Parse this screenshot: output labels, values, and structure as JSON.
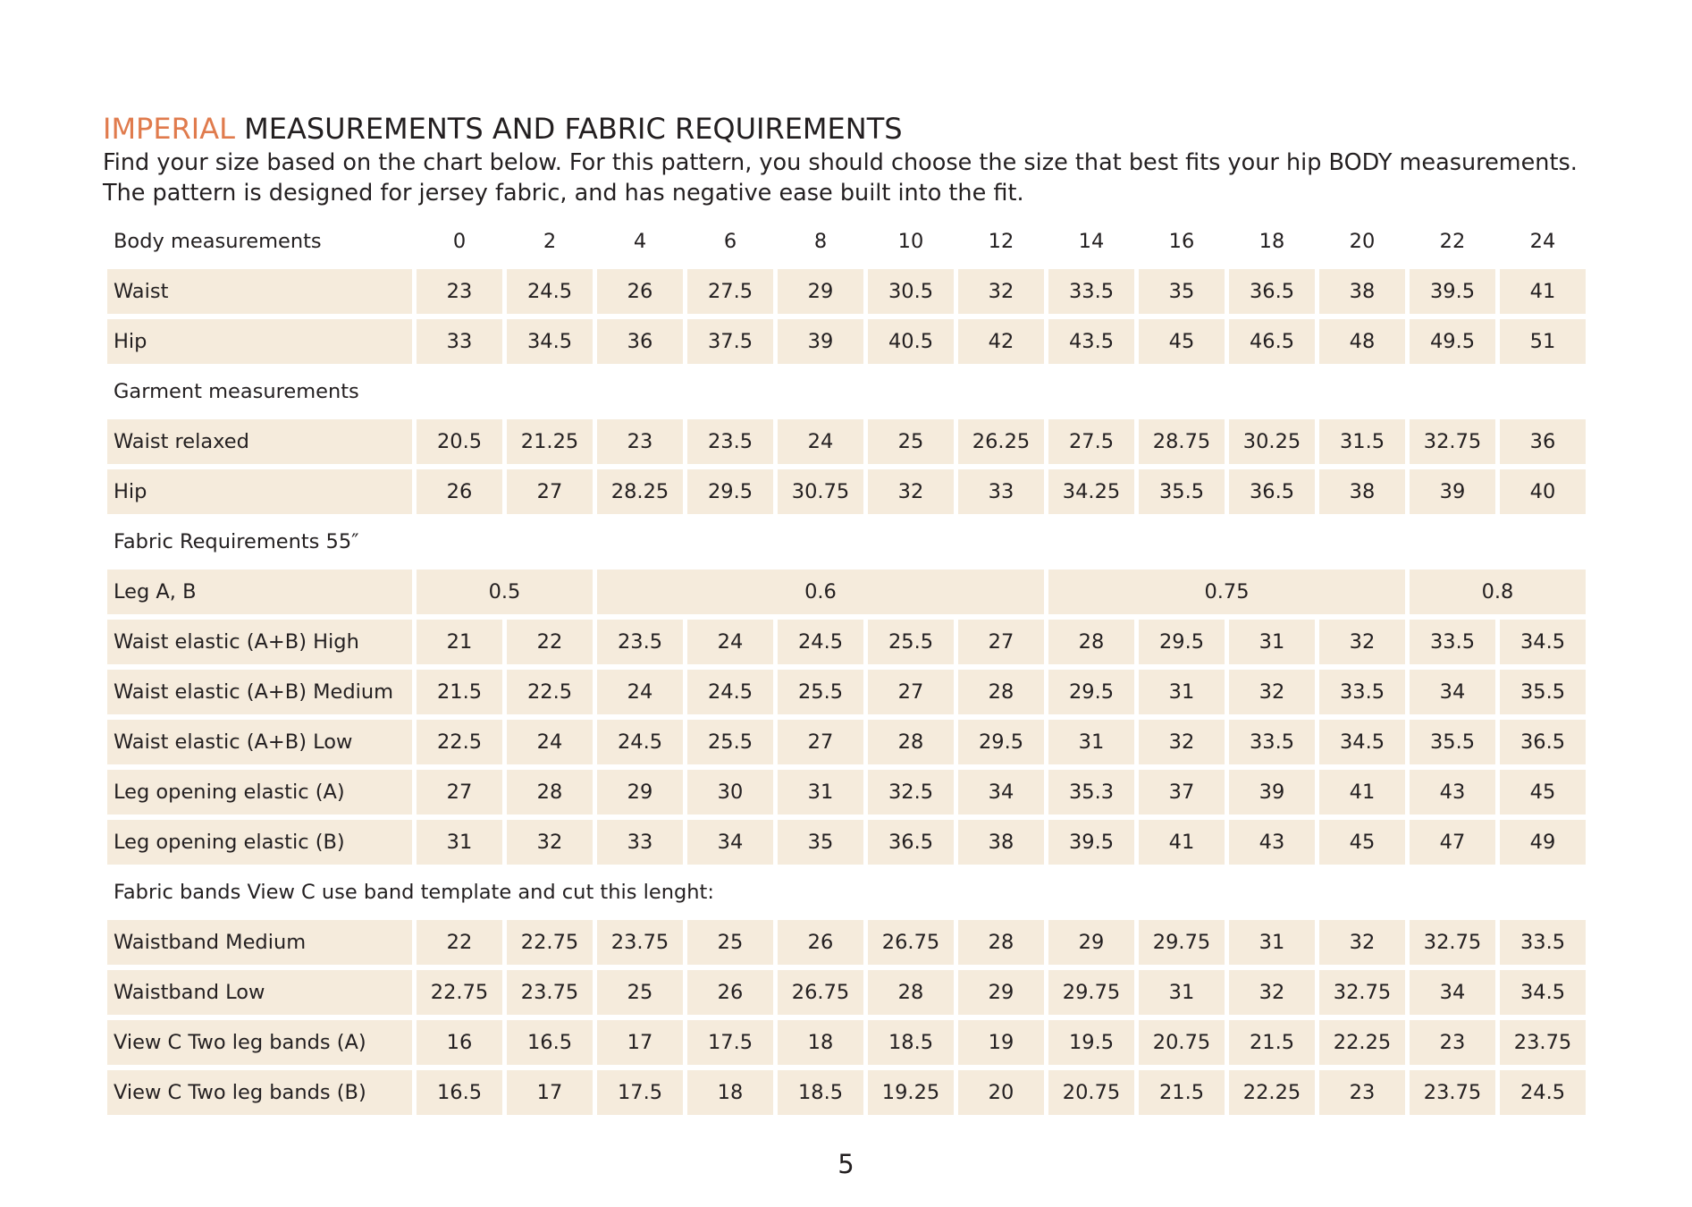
{
  "title": {
    "accent": "IMPERIAL",
    "rest": "MEASUREMENTS AND FABRIC REQUIREMENTS"
  },
  "intro": "Find your size based on the chart below. For this pattern, you should choose the size that best fits your hip BODY measurements.  The pattern is designed for jersey fabric, and has negative ease built into the fit.",
  "colors": {
    "accent": "#e07b4d",
    "cell_background": "#f5ebdc",
    "text": "#231f20"
  },
  "table": {
    "header_label": "Body measurements",
    "sizes": [
      "0",
      "2",
      "4",
      "6",
      "8",
      "10",
      "12",
      "14",
      "16",
      "18",
      "20",
      "22",
      "24"
    ],
    "body_rows": [
      {
        "label": "Waist",
        "values": [
          "23",
          "24.5",
          "26",
          "27.5",
          "29",
          "30.5",
          "32",
          "33.5",
          "35",
          "36.5",
          "38",
          "39.5",
          "41"
        ]
      },
      {
        "label": "Hip",
        "values": [
          "33",
          "34.5",
          "36",
          "37.5",
          "39",
          "40.5",
          "42",
          "43.5",
          "45",
          "46.5",
          "48",
          "49.5",
          "51"
        ]
      }
    ],
    "garment_heading": "Garment measurements",
    "garment_rows": [
      {
        "label": "Waist relaxed",
        "values": [
          "20.5",
          "21.25",
          "23",
          "23.5",
          "24",
          "25",
          "26.25",
          "27.5",
          "28.75",
          "30.25",
          "31.5",
          "32.75",
          "36"
        ]
      },
      {
        "label": "Hip",
        "values": [
          "26",
          "27",
          "28.25",
          "29.5",
          "30.75",
          "32",
          "33",
          "34.25",
          "35.5",
          "36.5",
          "38",
          "39",
          "40"
        ]
      }
    ],
    "fabric_heading": "Fabric Requirements 55″",
    "leg_row": {
      "label": "Leg A, B",
      "groups": [
        {
          "value": "0.5",
          "span": 2
        },
        {
          "value": "0.6",
          "span": 5
        },
        {
          "value": "0.75",
          "span": 4
        },
        {
          "value": "0.8",
          "span": 2
        }
      ]
    },
    "fabric_rows": [
      {
        "label": "Waist elastic (A+B) High",
        "values": [
          "21",
          "22",
          "23.5",
          "24",
          "24.5",
          "25.5",
          "27",
          "28",
          "29.5",
          "31",
          "32",
          "33.5",
          "34.5"
        ]
      },
      {
        "label": "Waist elastic (A+B) Medium",
        "values": [
          "21.5",
          "22.5",
          "24",
          "24.5",
          "25.5",
          "27",
          "28",
          "29.5",
          "31",
          "32",
          "33.5",
          "34",
          "35.5"
        ]
      },
      {
        "label": "Waist elastic (A+B) Low",
        "values": [
          "22.5",
          "24",
          "24.5",
          "25.5",
          "27",
          "28",
          "29.5",
          "31",
          "32",
          "33.5",
          "34.5",
          "35.5",
          "36.5"
        ]
      },
      {
        "label": "Leg opening elastic (A)",
        "values": [
          "27",
          "28",
          "29",
          "30",
          "31",
          "32.5",
          "34",
          "35.3",
          "37",
          "39",
          "41",
          "43",
          "45"
        ]
      },
      {
        "label": "Leg opening elastic (B)",
        "values": [
          "31",
          "32",
          "33",
          "34",
          "35",
          "36.5",
          "38",
          "39.5",
          "41",
          "43",
          "45",
          "47",
          "49"
        ]
      }
    ],
    "bands_heading": "Fabric bands View C use band template and cut this lenght:",
    "band_rows": [
      {
        "label": "Waistband Medium",
        "values": [
          "22",
          "22.75",
          "23.75",
          "25",
          "26",
          "26.75",
          "28",
          "29",
          "29.75",
          "31",
          "32",
          "32.75",
          "33.5"
        ]
      },
      {
        "label": "Waistband Low",
        "values": [
          "22.75",
          "23.75",
          "25",
          "26",
          "26.75",
          "28",
          "29",
          "29.75",
          "31",
          "32",
          "32.75",
          "34",
          "34.5"
        ]
      },
      {
        "label": "View C Two leg bands (A)",
        "values": [
          "16",
          "16.5",
          "17",
          "17.5",
          "18",
          "18.5",
          "19",
          "19.5",
          "20.75",
          "21.5",
          "22.25",
          "23",
          "23.75"
        ]
      },
      {
        "label": "View C Two leg bands (B)",
        "values": [
          "16.5",
          "17",
          "17.5",
          "18",
          "18.5",
          "19.25",
          "20",
          "20.75",
          "21.5",
          "22.25",
          "23",
          "23.75",
          "24.5"
        ]
      }
    ]
  },
  "page_number": "5"
}
